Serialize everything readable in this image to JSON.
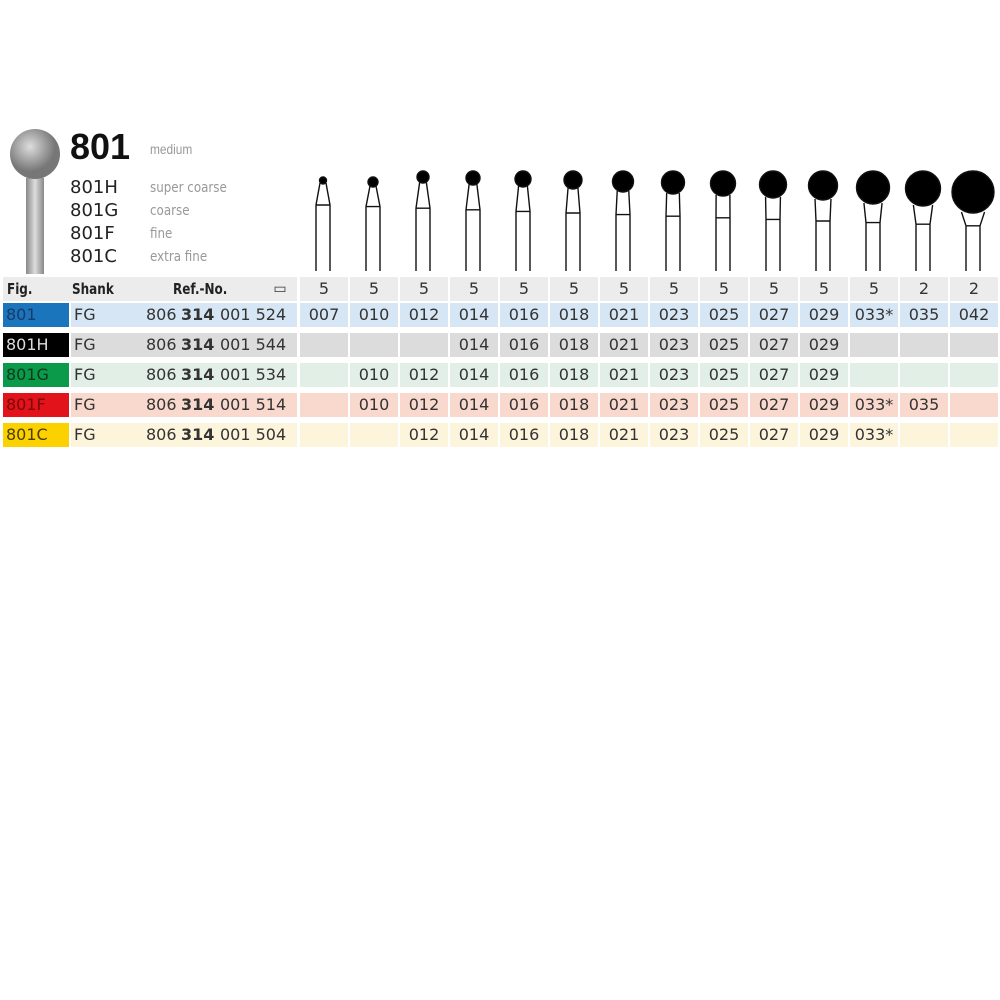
{
  "product": {
    "title": "801",
    "grade": "medium",
    "variants": [
      {
        "code": "801H",
        "grade": "super coarse"
      },
      {
        "code": "801G",
        "grade": "coarse"
      },
      {
        "code": "801F",
        "grade": "fine"
      },
      {
        "code": "801C",
        "grade": "extra fine"
      }
    ]
  },
  "header": {
    "fig": "Fig.",
    "shank": "Shank",
    "ref": "Ref.-No.",
    "pack_icon": "package-icon",
    "pack_quantities": [
      "5",
      "5",
      "5",
      "5",
      "5",
      "5",
      "5",
      "5",
      "5",
      "5",
      "5",
      "5",
      "2",
      "2"
    ]
  },
  "sizes": [
    "007",
    "010",
    "012",
    "014",
    "016",
    "018",
    "021",
    "023",
    "025",
    "027",
    "029",
    "033",
    "035",
    "042"
  ],
  "rows": [
    {
      "fig": "801",
      "shank": "FG",
      "ref_a": "806",
      "ref_b": "314",
      "ref_c": "001 524",
      "color": "#1a75bc",
      "text_color": "#1a3a6a",
      "bg": "#d7e6f5",
      "cells": [
        "007",
        "010",
        "012",
        "014",
        "016",
        "018",
        "021",
        "023",
        "025",
        "027",
        "029",
        "033*",
        "035",
        "042"
      ]
    },
    {
      "fig": "801H",
      "shank": "FG",
      "ref_a": "806",
      "ref_b": "314",
      "ref_c": "001 544",
      "color": "#000000",
      "text_color": "#dddddd",
      "bg": "#dcdcdc",
      "cells": [
        "",
        "",
        "",
        "014",
        "016",
        "018",
        "021",
        "023",
        "025",
        "027",
        "029",
        "",
        "",
        ""
      ]
    },
    {
      "fig": "801G",
      "shank": "FG",
      "ref_a": "806",
      "ref_b": "314",
      "ref_c": "001 534",
      "color": "#0a9a4a",
      "text_color": "#0d3a1d",
      "bg": "#e2efe6",
      "cells": [
        "",
        "010",
        "012",
        "014",
        "016",
        "018",
        "021",
        "023",
        "025",
        "027",
        "029",
        "",
        "",
        ""
      ]
    },
    {
      "fig": "801F",
      "shank": "FG",
      "ref_a": "806",
      "ref_b": "314",
      "ref_c": "001 514",
      "color": "#e2131b",
      "text_color": "#7a0a0a",
      "bg": "#f9d9cd",
      "cells": [
        "",
        "010",
        "012",
        "014",
        "016",
        "018",
        "021",
        "023",
        "025",
        "027",
        "029",
        "033*",
        "035",
        ""
      ]
    },
    {
      "fig": "801C",
      "shank": "FG",
      "ref_a": "806",
      "ref_b": "314",
      "ref_c": "001 504",
      "color": "#fcd100",
      "text_color": "#4a3e00",
      "bg": "#fdf4dc",
      "cells": [
        "",
        "",
        "012",
        "014",
        "016",
        "018",
        "021",
        "023",
        "025",
        "027",
        "029",
        "033*",
        "",
        ""
      ]
    }
  ]
}
